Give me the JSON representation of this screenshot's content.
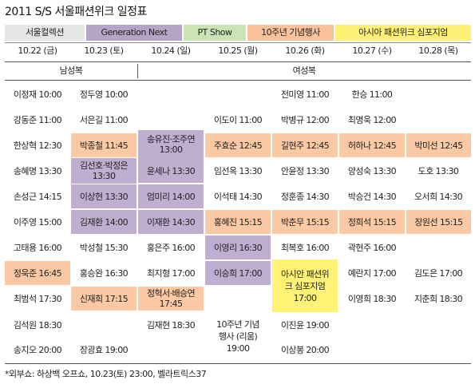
{
  "title": "2011 S/S 서울패션위크 일정표",
  "legend": [
    {
      "label": "서울컬렉션",
      "color": "#e6e6e6"
    },
    {
      "label": "Generation Next",
      "color": "#b4a4c6"
    },
    {
      "label": "PT Show",
      "color": "#cce3b6"
    },
    {
      "label": "10주년 기념행사",
      "color": "#f9c29a"
    },
    {
      "label": "아시아 패션위크 심포지엄",
      "color": "#fff176"
    }
  ],
  "dates": [
    "10.22 (금)",
    "10.23 (토)",
    "10.24 (일)",
    "10.25 (월)",
    "10.26 (화)",
    "10.27 (수)",
    "10.28 (목)"
  ],
  "sections": {
    "men": "남성복",
    "women": "여성복"
  },
  "colors": {
    "orange": "#fbc9a3",
    "purple": "#bfaed0",
    "yellow": "#fff275"
  },
  "rows": [
    [
      "이정재 10:00",
      "정두영 10:00",
      "전미영 11:00",
      "한승 11:00"
    ],
    [
      "강동준 11:00",
      "서은길 11:00",
      "이도이 11:00",
      "박병규 12:00",
      "최명욱 12:00"
    ],
    [
      "한상혁 12:30",
      "박종철 11:45",
      "송유진·조주연 13:00",
      "주효순 12:45",
      "길현주 12:45",
      "허하나 12:45",
      "박미선 12:45"
    ],
    [
      "송혜명 13:30",
      "김선호·박정은 13:30",
      "윤세나 13:30",
      "임선옥 13:30",
      "안윤정 13:30",
      "양성숙 13:30",
      "도호 13:30"
    ],
    [
      "손성근 14:15",
      "이상현 13:30",
      "엄미리 14:00",
      "이석태 14:30",
      "정훈종 14:30",
      "박승건 14:30",
      "오서희 14:30"
    ],
    [
      "이주영 15:00",
      "김재환 14:00",
      "이재환 14:30",
      "홍혜진 15:15",
      "박춘무 15:15",
      "정희석 15:15",
      "장원선 15:15"
    ],
    [
      "고태용 16:00",
      "박성철 15:30",
      "홍은주 16:00",
      "이영리 16:30",
      "최복호 16:00",
      "곽현주 16:00"
    ],
    [
      "정욱준 16:45",
      "홍승완 16:30",
      "최지형 17:00",
      "이승희 17:00",
      "아시안 패션위크 심포지엄 17:00",
      "예란지 17:00",
      "김도은 17:00"
    ],
    [
      "최범석 17:30",
      "신재희 17:15",
      "정혁서·배승연 17:45",
      "이영희 18:30",
      "지춘희 18:30"
    ],
    [
      "김석원 18:30",
      "김재현 18:30",
      "10주년 기념행사 (리움) 19:00",
      "이진윤 19:00"
    ],
    [
      "송지오 20:00",
      "장광효 19:00",
      "이상봉 20:00"
    ]
  ],
  "footnote": "*외부쇼: 하상백 오프쇼, 10.23(토) 23:00, 벨라트릭스37"
}
